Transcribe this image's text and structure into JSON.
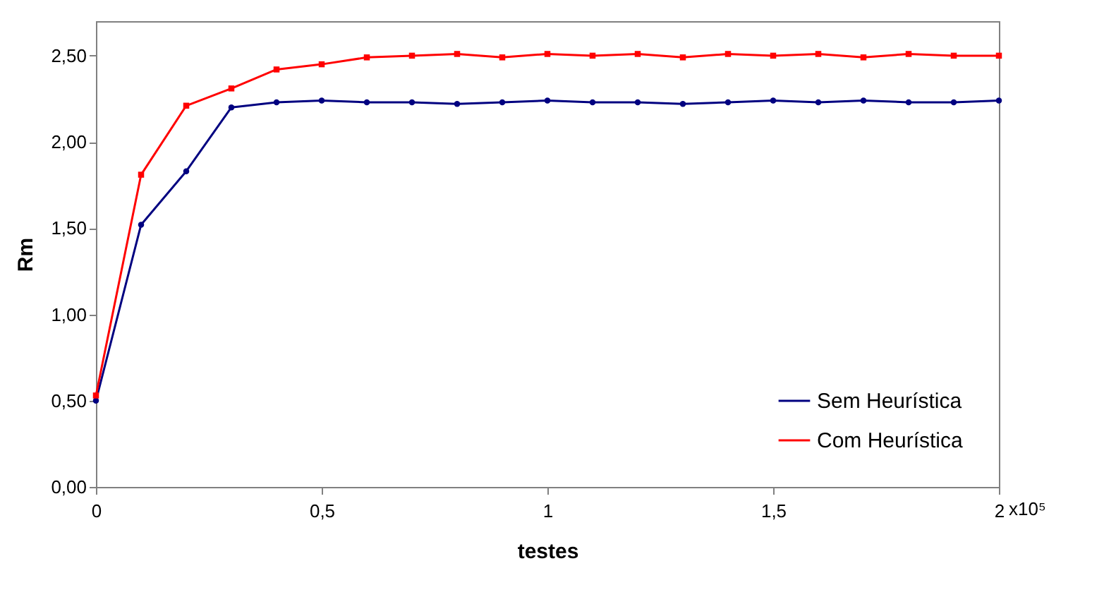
{
  "chart_data": {
    "type": "line",
    "xlabel": "testes",
    "ylabel": "Rm",
    "x": [
      0,
      0.1,
      0.2,
      0.3,
      0.4,
      0.5,
      0.6,
      0.7,
      0.8,
      0.9,
      1.0,
      1.1,
      1.2,
      1.3,
      1.4,
      1.5,
      1.6,
      1.7,
      1.8,
      1.9,
      2.0
    ],
    "series": [
      {
        "name": "Sem Heurística",
        "color": "#000080",
        "marker": "circle",
        "values": [
          0.5,
          1.52,
          1.83,
          2.2,
          2.23,
          2.24,
          2.23,
          2.23,
          2.22,
          2.23,
          2.24,
          2.23,
          2.23,
          2.22,
          2.23,
          2.24,
          2.23,
          2.24,
          2.23,
          2.23,
          2.24
        ]
      },
      {
        "name": "Com Heurística",
        "color": "#ff0000",
        "marker": "square",
        "values": [
          0.53,
          1.81,
          2.21,
          2.31,
          2.42,
          2.45,
          2.49,
          2.5,
          2.51,
          2.49,
          2.51,
          2.5,
          2.51,
          2.49,
          2.51,
          2.5,
          2.51,
          2.49,
          2.51,
          2.5,
          2.5
        ]
      }
    ],
    "xlim": [
      0,
      2
    ],
    "ylim": [
      0,
      2.7
    ],
    "xticks": [
      0,
      {
        "value": 0.5,
        "label": "0,5"
      },
      1,
      {
        "value": 1.5,
        "label": "1,5"
      },
      2
    ],
    "annotations": [
      "x10⁵"
    ],
    "yticks": [
      {
        "value": 0,
        "label": "0,00"
      },
      {
        "value": 0.5,
        "label": "0,50"
      },
      {
        "value": 1,
        "label": "1,00"
      },
      {
        "value": 1.5,
        "label": "1,50"
      },
      {
        "value": 2,
        "label": "2,00"
      },
      {
        "value": 2.5,
        "label": "2,50"
      }
    ],
    "grid": false,
    "legend": "bottom right"
  }
}
